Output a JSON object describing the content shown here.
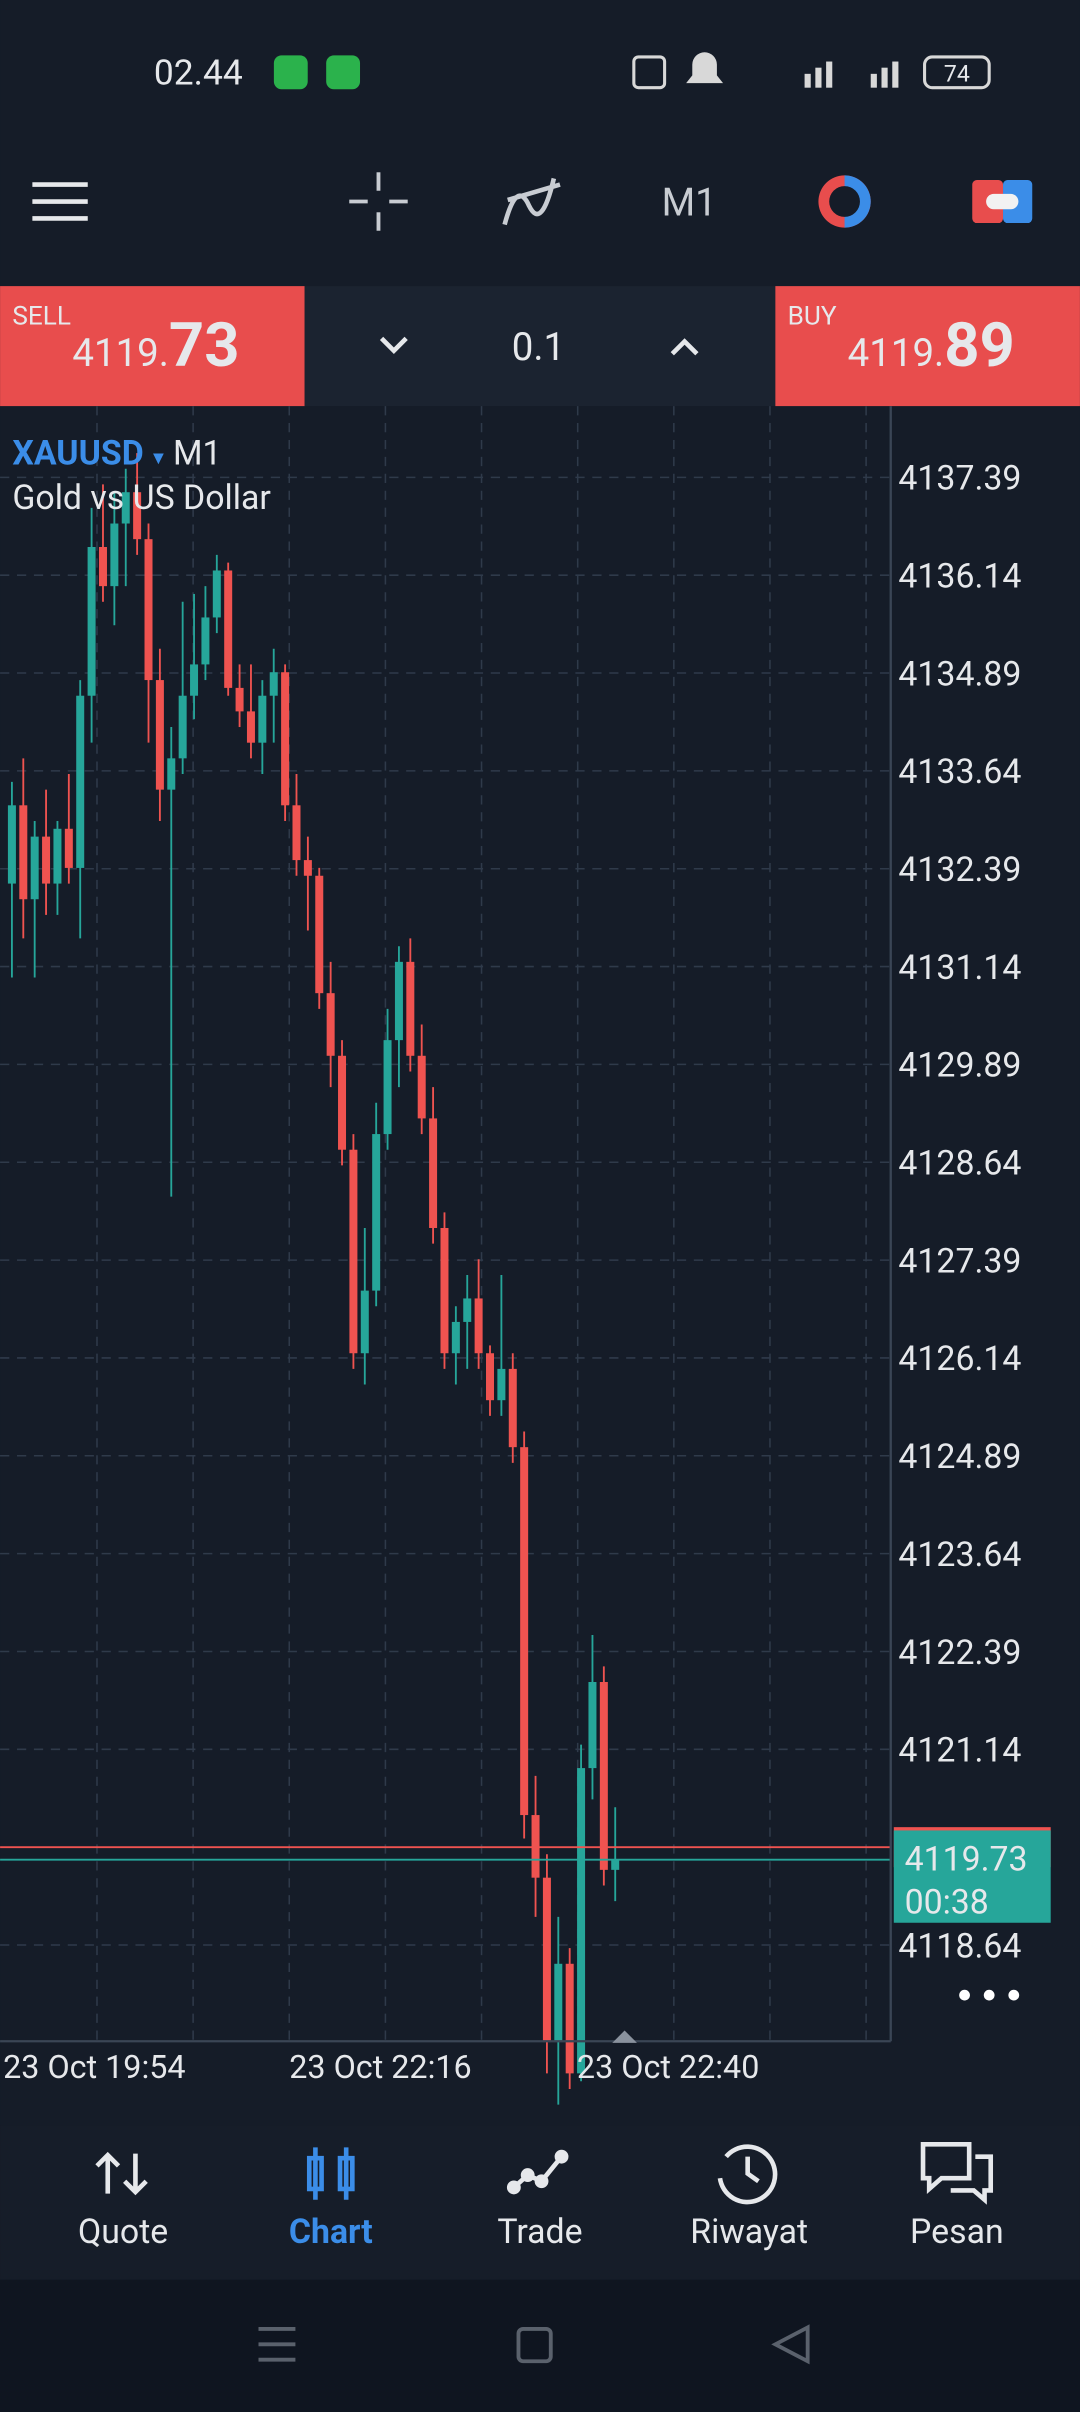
{
  "status_bar": {
    "time": "02.44",
    "battery": "74"
  },
  "toolbar": {
    "timeframe": "M1"
  },
  "trade_panel": {
    "sell_label": "SELL",
    "sell_price_main": "4119.",
    "sell_price_big": "73",
    "volume": "0.1",
    "buy_label": "BUY",
    "buy_price_main": "4119.",
    "buy_price_big": "89"
  },
  "chart_data": {
    "type": "candlestick",
    "symbol": "XAUUSD",
    "timeframe": "M1",
    "description": "Gold vs US Dollar",
    "up_color": "#26a69a",
    "down_color": "#ef5350",
    "grid": true,
    "ylim": [
      4117.41,
      4138.3
    ],
    "yticks": [
      4137.39,
      4136.14,
      4134.89,
      4133.64,
      4132.39,
      4131.14,
      4129.89,
      4128.64,
      4127.39,
      4126.14,
      4124.89,
      4123.64,
      4122.39,
      4121.14,
      4118.64
    ],
    "xtick_labels": [
      "23 Oct 19:54",
      "23 Oct 22:16",
      "23 Oct 22:40"
    ],
    "bid": 4119.73,
    "ask": 4119.89,
    "countdown": "00:38",
    "open": [
      4132.2,
      4133.2,
      4132.0,
      4132.8,
      4132.2,
      4132.9,
      4132.4,
      4134.6,
      4136.5,
      4136.0,
      4136.8,
      4137.2,
      4136.6,
      4134.8,
      4133.4,
      4133.8,
      4134.6,
      4135.0,
      4135.6,
      4136.2,
      4134.7,
      4134.4,
      4134.0,
      4134.6,
      4134.9,
      4133.2,
      4132.5,
      4132.3,
      4130.8,
      4130.0,
      4128.8,
      4126.2,
      4127.0,
      4129.0,
      4130.2,
      4131.2,
      4130.0,
      4129.2,
      4127.8,
      4126.2,
      4126.6,
      4126.9,
      4126.2,
      4125.6,
      4126.0,
      4125.0,
      4120.3,
      4119.5,
      4117.4,
      4118.4,
      4117.0,
      4120.9,
      4122.0,
      4119.6
    ],
    "high": [
      4133.5,
      4133.8,
      4133.0,
      4133.4,
      4133.0,
      4133.6,
      4134.8,
      4137.0,
      4137.3,
      4137.2,
      4137.5,
      4137.7,
      4136.8,
      4135.2,
      4134.2,
      4135.8,
      4135.9,
      4136.0,
      4136.4,
      4136.3,
      4135.0,
      4135.0,
      4134.8,
      4135.2,
      4135.0,
      4133.6,
      4132.8,
      4132.4,
      4131.2,
      4130.2,
      4129.0,
      4127.8,
      4129.4,
      4130.6,
      4131.4,
      4131.5,
      4130.4,
      4129.6,
      4128.0,
      4126.8,
      4127.2,
      4127.4,
      4126.3,
      4127.2,
      4126.2,
      4125.2,
      4120.8,
      4119.8,
      4119.0,
      4118.6,
      4121.2,
      4122.6,
      4122.2,
      4120.4
    ],
    "low": [
      4131.0,
      4131.5,
      4131.0,
      4131.8,
      4131.8,
      4132.2,
      4131.5,
      4134.0,
      4135.8,
      4135.5,
      4136.0,
      4136.4,
      4134.0,
      4133.0,
      4128.2,
      4133.6,
      4134.3,
      4134.8,
      4135.4,
      4134.6,
      4134.2,
      4133.8,
      4133.6,
      4134.0,
      4133.0,
      4132.3,
      4131.6,
      4130.6,
      4129.6,
      4128.6,
      4126.0,
      4125.8,
      4126.8,
      4128.8,
      4129.6,
      4129.8,
      4129.0,
      4127.6,
      4126.0,
      4125.8,
      4126.0,
      4126.0,
      4125.4,
      4125.4,
      4124.8,
      4120.0,
      4119.0,
      4117.0,
      4116.6,
      4116.8,
      4116.9,
      4120.5,
      4119.4,
      4119.2
    ],
    "close": [
      4133.2,
      4132.0,
      4132.8,
      4132.2,
      4132.9,
      4132.4,
      4134.6,
      4136.5,
      4136.0,
      4136.8,
      4137.2,
      4136.6,
      4134.8,
      4133.4,
      4133.8,
      4134.6,
      4135.0,
      4135.6,
      4136.2,
      4134.7,
      4134.4,
      4134.0,
      4134.6,
      4134.9,
      4133.2,
      4132.5,
      4132.3,
      4130.8,
      4130.0,
      4128.8,
      4126.2,
      4127.0,
      4129.0,
      4130.2,
      4131.2,
      4130.0,
      4129.2,
      4127.8,
      4126.2,
      4126.6,
      4126.9,
      4126.2,
      4125.6,
      4126.0,
      4125.0,
      4120.3,
      4119.5,
      4117.4,
      4118.4,
      4117.0,
      4120.9,
      4122.0,
      4119.6,
      4119.73
    ]
  },
  "nav": {
    "items": [
      "Quote",
      "Chart",
      "Trade",
      "Riwayat",
      "Pesan"
    ]
  }
}
